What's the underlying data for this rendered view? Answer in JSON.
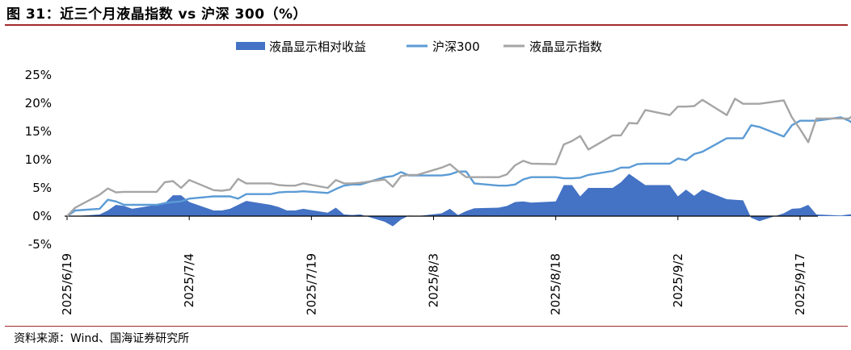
{
  "title": "图 31：近三个月液晶指数 vs 沪深 300（%）",
  "source": "资料来源：Wind、国海证券研究所",
  "colors": {
    "area": "#4472c4",
    "hs300": "#5b9bd5",
    "index": "#a5a5a5",
    "rule": "#a32b2b"
  },
  "chart_data": {
    "type": "line",
    "y_format": "percent",
    "ylim": [
      -5,
      25
    ],
    "yticks": [
      -5,
      0,
      5,
      10,
      15,
      20,
      25
    ],
    "ytick_labels": [
      "-5%",
      "0%",
      "5%",
      "10%",
      "15%",
      "20%",
      "25%"
    ],
    "x_tick_labels": [
      "2025/6/19",
      "2025/7/4",
      "2025/7/19",
      "2025/8/3",
      "2025/8/18",
      "2025/9/2",
      "2025/9/17"
    ],
    "x_start": "2025/6/19",
    "x_end": "2025/9/19",
    "grid": false,
    "legend_position": "top",
    "series": [
      {
        "name": "液晶显示相对收益",
        "kind": "area",
        "points": [
          [
            "2025/6/19",
            0
          ],
          [
            "2025/6/20",
            0
          ],
          [
            "2025/6/23",
            0.3
          ],
          [
            "2025/6/24",
            1
          ],
          [
            "2025/6/25",
            2
          ],
          [
            "2025/6/26",
            1.8
          ],
          [
            "2025/6/27",
            1.3
          ],
          [
            "2025/6/30",
            2
          ],
          [
            "2025/7/1",
            2.3
          ],
          [
            "2025/7/2",
            3.7
          ],
          [
            "2025/7/3",
            3.7
          ],
          [
            "2025/7/4",
            2.5
          ],
          [
            "2025/7/7",
            1
          ],
          [
            "2025/7/8",
            1
          ],
          [
            "2025/7/9",
            1.3
          ],
          [
            "2025/7/10",
            2
          ],
          [
            "2025/7/11",
            2.7
          ],
          [
            "2025/7/14",
            2
          ],
          [
            "2025/7/15",
            1.6
          ],
          [
            "2025/7/16",
            1
          ],
          [
            "2025/7/17",
            1
          ],
          [
            "2025/7/18",
            1.3
          ],
          [
            "2025/7/21",
            0.6
          ],
          [
            "2025/7/22",
            1.5
          ],
          [
            "2025/7/23",
            0.3
          ],
          [
            "2025/7/24",
            0.2
          ],
          [
            "2025/7/25",
            0.3
          ],
          [
            "2025/7/28",
            -1
          ],
          [
            "2025/7/29",
            -1.8
          ],
          [
            "2025/7/30",
            -0.6
          ],
          [
            "2025/7/31",
            0.1
          ],
          [
            "2025/8/1",
            0
          ],
          [
            "2025/8/4",
            0.5
          ],
          [
            "2025/8/5",
            1.3
          ],
          [
            "2025/8/6",
            0.2
          ],
          [
            "2025/8/7",
            0.9
          ],
          [
            "2025/8/8",
            1.4
          ],
          [
            "2025/8/11",
            1.5
          ],
          [
            "2025/8/12",
            1.8
          ],
          [
            "2025/8/13",
            2.5
          ],
          [
            "2025/8/14",
            2.6
          ],
          [
            "2025/8/15",
            2.4
          ],
          [
            "2025/8/18",
            2.6
          ],
          [
            "2025/8/19",
            5.5
          ],
          [
            "2025/8/20",
            5.5
          ],
          [
            "2025/8/21",
            3.5
          ],
          [
            "2025/8/22",
            5
          ],
          [
            "2025/8/25",
            5
          ],
          [
            "2025/8/26",
            6
          ],
          [
            "2025/8/27",
            7.5
          ],
          [
            "2025/8/28",
            6.5
          ],
          [
            "2025/8/29",
            5.5
          ],
          [
            "2025/9/1",
            5.5
          ],
          [
            "2025/9/2",
            3.5
          ],
          [
            "2025/9/3",
            4.7
          ],
          [
            "2025/9/4",
            3.6
          ],
          [
            "2025/9/5",
            4.7
          ],
          [
            "2025/9/8",
            3
          ],
          [
            "2025/9/9",
            2.9
          ],
          [
            "2025/9/10",
            2.8
          ],
          [
            "2025/9/11",
            -0.3
          ],
          [
            "2025/9/12",
            -0.9
          ],
          [
            "2025/9/15",
            0.5
          ],
          [
            "2025/9/16",
            1.3
          ],
          [
            "2025/9/17",
            1.4
          ],
          [
            "2025/9/18",
            2
          ],
          [
            "2025/9/19",
            0.3
          ],
          [
            "2025/9/22",
            0.1
          ],
          [
            "2025/9/23",
            0.3
          ],
          [
            "2025/9/24",
            0.4
          ],
          [
            "2025/9/25",
            0
          ],
          [
            "2025/9/26",
            1.2
          ],
          [
            "2025/9/29",
            1.8
          ],
          [
            "2025/9/30",
            2.3
          ],
          [
            "2025/10/1",
            2
          ]
        ]
      },
      {
        "name": "沪深300",
        "kind": "line",
        "points": [
          [
            "2025/6/19",
            0
          ],
          [
            "2025/6/20",
            1
          ],
          [
            "2025/6/23",
            1.3
          ],
          [
            "2025/6/24",
            2.9
          ],
          [
            "2025/6/25",
            2.6
          ],
          [
            "2025/6/26",
            2
          ],
          [
            "2025/6/27",
            2
          ],
          [
            "2025/6/30",
            2
          ],
          [
            "2025/7/1",
            2.3
          ],
          [
            "2025/7/2",
            2.5
          ],
          [
            "2025/7/3",
            2.6
          ],
          [
            "2025/7/4",
            3.1
          ],
          [
            "2025/7/7",
            3.5
          ],
          [
            "2025/7/8",
            3.5
          ],
          [
            "2025/7/9",
            3.5
          ],
          [
            "2025/7/10",
            3.1
          ],
          [
            "2025/7/11",
            3.9
          ],
          [
            "2025/7/14",
            3.9
          ],
          [
            "2025/7/15",
            4.2
          ],
          [
            "2025/7/16",
            4.3
          ],
          [
            "2025/7/17",
            4.3
          ],
          [
            "2025/7/18",
            4.4
          ],
          [
            "2025/7/21",
            4.1
          ],
          [
            "2025/7/22",
            4.8
          ],
          [
            "2025/7/23",
            5.4
          ],
          [
            "2025/7/24",
            5.6
          ],
          [
            "2025/7/25",
            5.6
          ],
          [
            "2025/7/28",
            6.9
          ],
          [
            "2025/7/29",
            7.1
          ],
          [
            "2025/7/30",
            7.8
          ],
          [
            "2025/7/31",
            7.2
          ],
          [
            "2025/8/1",
            7.2
          ],
          [
            "2025/8/4",
            7.2
          ],
          [
            "2025/8/5",
            7.4
          ],
          [
            "2025/8/6",
            7.9
          ],
          [
            "2025/8/7",
            7.9
          ],
          [
            "2025/8/8",
            5.8
          ],
          [
            "2025/8/11",
            5.4
          ],
          [
            "2025/8/12",
            5.4
          ],
          [
            "2025/8/13",
            5.6
          ],
          [
            "2025/8/14",
            6.5
          ],
          [
            "2025/8/15",
            6.9
          ],
          [
            "2025/8/18",
            6.9
          ],
          [
            "2025/8/19",
            6.7
          ],
          [
            "2025/8/20",
            6.7
          ],
          [
            "2025/8/21",
            6.8
          ],
          [
            "2025/8/22",
            7.3
          ],
          [
            "2025/8/25",
            8
          ],
          [
            "2025/8/26",
            8.6
          ],
          [
            "2025/8/27",
            8.6
          ],
          [
            "2025/8/28",
            9.2
          ],
          [
            "2025/8/29",
            9.3
          ],
          [
            "2025/9/1",
            9.3
          ],
          [
            "2025/9/2",
            10.2
          ],
          [
            "2025/9/3",
            9.9
          ],
          [
            "2025/9/4",
            11
          ],
          [
            "2025/9/5",
            11.4
          ],
          [
            "2025/9/8",
            13.8
          ],
          [
            "2025/9/9",
            13.8
          ],
          [
            "2025/9/10",
            13.8
          ],
          [
            "2025/9/11",
            16.1
          ],
          [
            "2025/9/12",
            15.8
          ],
          [
            "2025/9/15",
            14.1
          ],
          [
            "2025/9/16",
            16.1
          ],
          [
            "2025/9/17",
            16.9
          ],
          [
            "2025/9/18",
            16.9
          ],
          [
            "2025/9/19",
            16.9
          ],
          [
            "2025/9/22",
            17.5
          ],
          [
            "2025/9/23",
            16.9
          ],
          [
            "2025/9/24",
            16
          ],
          [
            "2025/9/25",
            13.5
          ],
          [
            "2025/9/26",
            15.9
          ],
          [
            "2025/9/29",
            15.9
          ],
          [
            "2025/9/30",
            15.9
          ],
          [
            "2025/10/1",
            16.1
          ]
        ]
      },
      {
        "name": "液晶显示指数",
        "kind": "line",
        "points": [
          [
            "2025/6/19",
            0
          ],
          [
            "2025/6/20",
            1.5
          ],
          [
            "2025/6/23",
            3.8
          ],
          [
            "2025/6/24",
            4.9
          ],
          [
            "2025/6/25",
            4.2
          ],
          [
            "2025/6/26",
            4.3
          ],
          [
            "2025/6/27",
            4.3
          ],
          [
            "2025/6/30",
            4.3
          ],
          [
            "2025/7/1",
            6
          ],
          [
            "2025/7/2",
            6.2
          ],
          [
            "2025/7/3",
            5
          ],
          [
            "2025/7/4",
            6.4
          ],
          [
            "2025/7/7",
            4.6
          ],
          [
            "2025/7/8",
            4.5
          ],
          [
            "2025/7/9",
            4.7
          ],
          [
            "2025/7/10",
            6.6
          ],
          [
            "2025/7/11",
            5.8
          ],
          [
            "2025/7/14",
            5.8
          ],
          [
            "2025/7/15",
            5.5
          ],
          [
            "2025/7/16",
            5.4
          ],
          [
            "2025/7/17",
            5.4
          ],
          [
            "2025/7/18",
            5.8
          ],
          [
            "2025/7/21",
            5
          ],
          [
            "2025/7/22",
            6.4
          ],
          [
            "2025/7/23",
            5.8
          ],
          [
            "2025/7/24",
            5.8
          ],
          [
            "2025/7/25",
            5.9
          ],
          [
            "2025/7/28",
            6.5
          ],
          [
            "2025/7/29",
            5.2
          ],
          [
            "2025/7/30",
            7.1
          ],
          [
            "2025/7/31",
            7.3
          ],
          [
            "2025/8/1",
            7.3
          ],
          [
            "2025/8/4",
            8.6
          ],
          [
            "2025/8/5",
            9.2
          ],
          [
            "2025/8/6",
            8
          ],
          [
            "2025/8/7",
            6.9
          ],
          [
            "2025/8/8",
            6.9
          ],
          [
            "2025/8/11",
            6.9
          ],
          [
            "2025/8/12",
            7.4
          ],
          [
            "2025/8/13",
            9
          ],
          [
            "2025/8/14",
            9.8
          ],
          [
            "2025/8/15",
            9.3
          ],
          [
            "2025/8/18",
            9.2
          ],
          [
            "2025/8/19",
            12.7
          ],
          [
            "2025/8/20",
            13.3
          ],
          [
            "2025/8/21",
            14.2
          ],
          [
            "2025/8/22",
            11.8
          ],
          [
            "2025/8/25",
            14.3
          ],
          [
            "2025/8/26",
            14.3
          ],
          [
            "2025/8/27",
            16.5
          ],
          [
            "2025/8/28",
            16.4
          ],
          [
            "2025/8/29",
            18.8
          ],
          [
            "2025/9/1",
            17.9
          ],
          [
            "2025/9/2",
            19.4
          ],
          [
            "2025/9/3",
            19.4
          ],
          [
            "2025/9/4",
            19.5
          ],
          [
            "2025/9/5",
            20.6
          ],
          [
            "2025/9/8",
            17.9
          ],
          [
            "2025/9/9",
            20.8
          ],
          [
            "2025/9/10",
            19.9
          ],
          [
            "2025/9/11",
            19.9
          ],
          [
            "2025/9/12",
            19.9
          ],
          [
            "2025/9/15",
            20.5
          ],
          [
            "2025/9/16",
            17.5
          ],
          [
            "2025/9/17",
            15.4
          ],
          [
            "2025/9/18",
            13.1
          ],
          [
            "2025/9/19",
            17.3
          ],
          [
            "2025/9/22",
            17.3
          ],
          [
            "2025/9/23",
            17.3
          ],
          [
            "2025/9/24",
            18.3
          ],
          [
            "2025/9/25",
            15.1
          ],
          [
            "2025/9/26",
            15.5
          ],
          [
            "2025/9/29",
            18.3
          ],
          [
            "2025/9/30",
            18
          ],
          [
            "2025/10/1",
            18
          ]
        ]
      }
    ]
  }
}
